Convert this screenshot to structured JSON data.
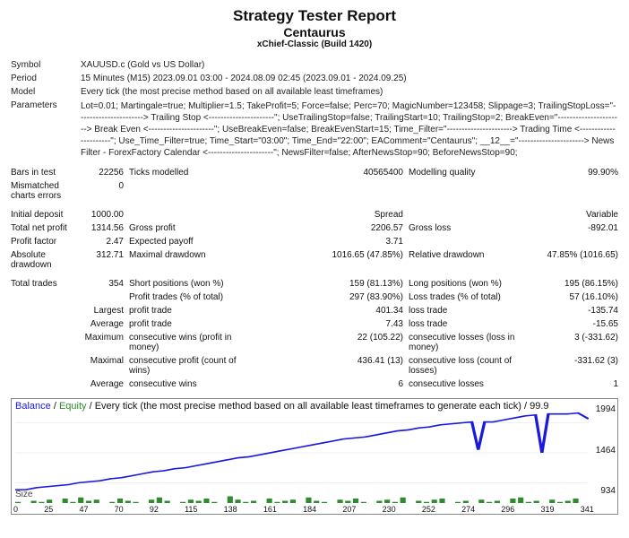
{
  "header": {
    "title": "Strategy Tester Report",
    "strategy": "Centaurus",
    "build": "xChief-Classic (Build 1420)"
  },
  "info": {
    "symbol_label": "Symbol",
    "symbol": "XAUUSD.c (Gold vs US Dollar)",
    "period_label": "Period",
    "period": "15 Minutes (M15) 2023.09.01 03:00 - 2024.08.09 02:45 (2023.09.01 - 2024.09.25)",
    "model_label": "Model",
    "model": "Every tick (the most precise method based on all available least timeframes)",
    "params_label": "Parameters",
    "params": "Lot=0.01; Martingale=true; Multiplier=1.5; TakeProfit=5; Force=false; Perc=70; MagicNumber=123458; Slippage=3; TrailingStopLoss=\"----------------------> Trailing Stop <----------------------\"; UseTrailingStop=false; TrailingStart=10; TrailingStop=2; BreakEven=\"----------------------> Break Even <----------------------\"; UseBreakEven=false; BreakEvenStart=15; Time_Filter=\"----------------------> Trading Time <----------------------\"; Use_Time_Filter=true; Time_Start=\"03:00\"; Time_End=\"22:00\"; EAComment=\"Centaurus\"; __12__=\"----------------------> News Filter - ForexFactory Calendar <----------------------\"; NewsFilter=false; AfterNewsStop=90; BeforeNewsStop=90;"
  },
  "stats": {
    "bars_in_test_l": "Bars in test",
    "bars_in_test": "22256",
    "ticks_l": "Ticks modelled",
    "ticks": "40565400",
    "mq_l": "Modelling quality",
    "mq": "99.90%",
    "mce_l": "Mismatched charts errors",
    "mce": "0",
    "initdep_l": "Initial deposit",
    "initdep": "1000.00",
    "spread_l": "Spread",
    "spread": "Variable",
    "tnp_l": "Total net profit",
    "tnp": "1314.56",
    "gp_l": "Gross profit",
    "gp": "2206.57",
    "gl_l": "Gross loss",
    "gl": "-892.01",
    "pf_l": "Profit factor",
    "pf": "2.47",
    "ep_l": "Expected payoff",
    "ep": "3.71",
    "ad_l": "Absolute drawdown",
    "ad": "312.71",
    "md_l": "Maximal drawdown",
    "md": "1016.65 (47.85%)",
    "rd_l": "Relative drawdown",
    "rd": "47.85% (1016.65)",
    "tt_l": "Total trades",
    "tt": "354",
    "sp_l": "Short positions (won %)",
    "sp": "159 (81.13%)",
    "lp_l": "Long positions (won %)",
    "lp": "195 (86.15%)",
    "pt_l": "Profit trades (% of total)",
    "pt": "297 (83.90%)",
    "lt_l": "Loss trades (% of total)",
    "lt": "57 (16.10%)",
    "largest_l": "Largest",
    "lpt_l": "profit trade",
    "lpt": "401.34",
    "llt_l": "loss trade",
    "llt": "-135.74",
    "avg_l": "Average",
    "apt_l": "profit trade",
    "apt": "7.43",
    "alt_l": "loss trade",
    "alt": "-15.65",
    "max_l": "Maximum",
    "mcw_l": "consecutive wins (profit in money)",
    "mcw": "22 (105.22)",
    "mcl_l": "consecutive losses (loss in money)",
    "mcl": "3 (-331.62)",
    "maxl_l": "Maximal",
    "mcp_l": "consecutive profit (count of wins)",
    "mcp": "436.41 (13)",
    "mclc_l": "consecutive loss (count of losses)",
    "mclc": "-331.62 (3)",
    "avg2_l": "Average",
    "acw_l": "consecutive wins",
    "acw": "6",
    "acl_l": "consecutive losses",
    "acl": "1"
  },
  "chart": {
    "title_pre": "Balance",
    "title_eq": "Equity",
    "title_post": "Every tick (the most precise method based on all available least timeframes to generate each tick) / 99.9",
    "size_label": "Size",
    "y_ticks": [
      "1994",
      "1464",
      "934"
    ],
    "x_ticks": [
      "0",
      "25",
      "47",
      "70",
      "92",
      "115",
      "138",
      "161",
      "184",
      "207",
      "230",
      "252",
      "274",
      "296",
      "319",
      "341"
    ],
    "line_color": "#1a1adf",
    "bar_color": "#2e8b2e",
    "grid_color": "#e6e6e6",
    "equity_points": [
      [
        0,
        82
      ],
      [
        5,
        82
      ],
      [
        10,
        80
      ],
      [
        15,
        79
      ],
      [
        20,
        78
      ],
      [
        25,
        77
      ],
      [
        30,
        75
      ],
      [
        35,
        74
      ],
      [
        40,
        73
      ],
      [
        45,
        71
      ],
      [
        50,
        70
      ],
      [
        55,
        68
      ],
      [
        60,
        66
      ],
      [
        65,
        64
      ],
      [
        70,
        63
      ],
      [
        75,
        61
      ],
      [
        80,
        60
      ],
      [
        85,
        58
      ],
      [
        90,
        56
      ],
      [
        95,
        54
      ],
      [
        100,
        52
      ],
      [
        105,
        50
      ],
      [
        110,
        49
      ],
      [
        115,
        47
      ],
      [
        120,
        45
      ],
      [
        125,
        43
      ],
      [
        130,
        41
      ],
      [
        135,
        39
      ],
      [
        140,
        37
      ],
      [
        145,
        35
      ],
      [
        150,
        33
      ],
      [
        155,
        31
      ],
      [
        160,
        30
      ],
      [
        165,
        29
      ],
      [
        170,
        27
      ],
      [
        175,
        25
      ],
      [
        180,
        23
      ],
      [
        185,
        22
      ],
      [
        190,
        20
      ],
      [
        195,
        19
      ],
      [
        200,
        17
      ],
      [
        205,
        16
      ],
      [
        210,
        15
      ],
      [
        215,
        14
      ],
      [
        218,
        42
      ],
      [
        221,
        14
      ],
      [
        225,
        14
      ],
      [
        230,
        12
      ],
      [
        235,
        10
      ],
      [
        240,
        8
      ],
      [
        245,
        7
      ],
      [
        248,
        45
      ],
      [
        251,
        6
      ],
      [
        255,
        6
      ],
      [
        260,
        6
      ],
      [
        265,
        5
      ],
      [
        270,
        11
      ]
    ],
    "size_bars": [
      1,
      0,
      2,
      1,
      3,
      0,
      4,
      1,
      5,
      2,
      3,
      0,
      1,
      4,
      2,
      1,
      0,
      3,
      5,
      2,
      0,
      1,
      3,
      2,
      4,
      1,
      0,
      6,
      3,
      1,
      2,
      0,
      4,
      1,
      2,
      3,
      0,
      5,
      2,
      1,
      0,
      3,
      2,
      4,
      1,
      0,
      2,
      3,
      1,
      5,
      0,
      2,
      1,
      3,
      4,
      0,
      1,
      2,
      0,
      3,
      1,
      2,
      0,
      4,
      5,
      1,
      2,
      0,
      3,
      1,
      2,
      4,
      0
    ]
  }
}
